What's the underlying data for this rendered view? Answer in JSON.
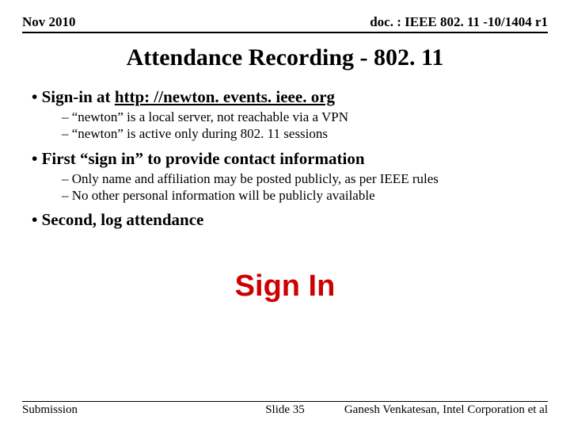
{
  "header": {
    "left": "Nov 2010",
    "right": "doc. : IEEE 802. 11 -10/1404 r1"
  },
  "title": "Attendance Recording - 802. 11",
  "bullets": {
    "b1_a_prefix": "Sign-in at ",
    "b1_a_link": "http: //newton. events. ieee. org",
    "b1_a_sub1": "“newton” is a local server, not reachable via a VPN",
    "b1_a_sub2": "“newton” is active only during 802. 11 sessions",
    "b1_b": "First “sign in” to provide contact information",
    "b1_b_sub1": "Only name and affiliation may be posted publicly, as per IEEE rules",
    "b1_b_sub2": "No other personal information will be publicly available",
    "b1_c": "Second, log attendance"
  },
  "signin": "Sign In",
  "footer": {
    "left": "Submission",
    "center": "Slide 35",
    "right": "Ganesh Venkatesan, Intel Corporation et al"
  },
  "colors": {
    "accent": "#cc0100",
    "text": "#000000",
    "bg": "#ffffff"
  }
}
